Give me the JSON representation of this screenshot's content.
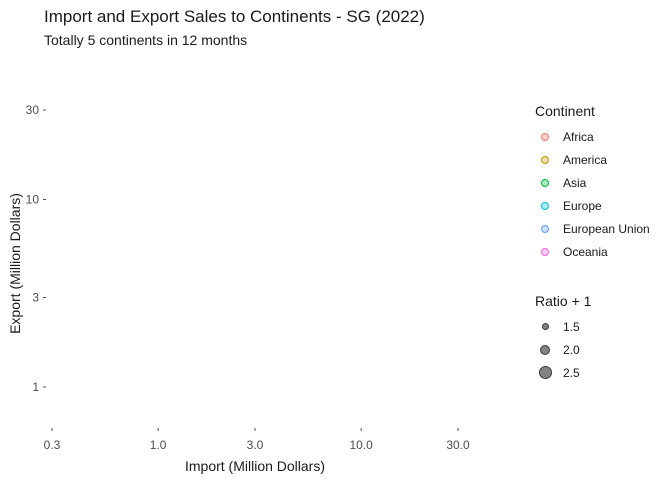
{
  "chart_data": {
    "type": "scatter",
    "title": "Import and Export Sales to Continents - SG (2022)",
    "subtitle": "Totally 5 continents in 12 months",
    "xlabel": "Import (Million Dollars)",
    "ylabel": "Export (Million Dollars)",
    "x_scale": "log",
    "y_scale": "log",
    "xlim": [
      0.3,
      30
    ],
    "ylim": [
      1,
      30
    ],
    "x_ticks": [
      0.3,
      1.0,
      3.0,
      10.0,
      30.0
    ],
    "x_tick_labels": [
      "0.3",
      "1.0",
      "3.0",
      "10.0",
      "30.0"
    ],
    "y_ticks": [
      1,
      3,
      10,
      30
    ],
    "y_tick_labels": [
      "1",
      "3",
      "10",
      "30"
    ],
    "grid": false,
    "points": [],
    "legend": {
      "placement": "right",
      "color": {
        "title": "Continent",
        "entries": [
          {
            "label": "Africa",
            "color": "#f8766d"
          },
          {
            "label": "America",
            "color": "#c49a00"
          },
          {
            "label": "Asia",
            "color": "#00ba38"
          },
          {
            "label": "Europe",
            "color": "#00c0e0"
          },
          {
            "label": "European Union",
            "color": "#619cff"
          },
          {
            "label": "Oceania",
            "color": "#f564e3"
          }
        ]
      },
      "size": {
        "title": "Ratio + 1",
        "entries": [
          {
            "label": "1.5",
            "value": 1.5
          },
          {
            "label": "2.0",
            "value": 2.0
          },
          {
            "label": "2.5",
            "value": 2.5
          }
        ]
      }
    }
  }
}
